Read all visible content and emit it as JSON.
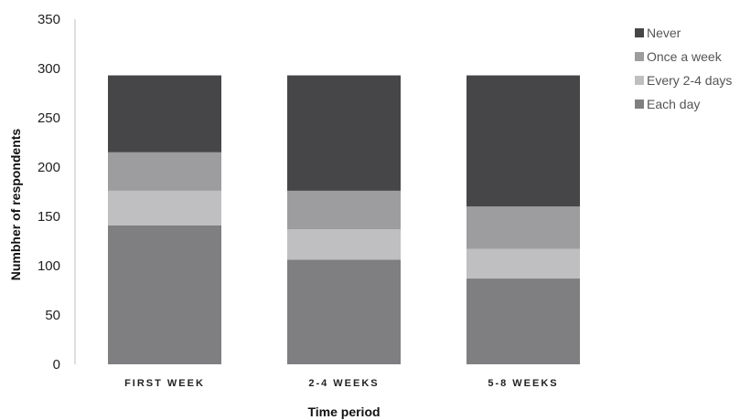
{
  "chart_data": {
    "type": "bar",
    "stacked": true,
    "categories": [
      "FIRST WEEK",
      "2-4 WEEKS",
      "5-8 WEEKS"
    ],
    "series": [
      {
        "name": "Each day",
        "values": [
          141,
          106,
          87
        ],
        "color": "#7f7f81"
      },
      {
        "name": "Every 2-4 days",
        "values": [
          35,
          31,
          30
        ],
        "color": "#bfbfc1"
      },
      {
        "name": "Once a week",
        "values": [
          39,
          39,
          43
        ],
        "color": "#9d9d9f"
      },
      {
        "name": "Never",
        "values": [
          78,
          117,
          133
        ],
        "color": "#464648"
      }
    ],
    "legend_order": [
      "Never",
      "Once a week",
      "Every 2-4 days",
      "Each day"
    ],
    "title": "",
    "xlabel": "Time period",
    "ylabel": "Numbher of respondents",
    "ylim": [
      0,
      350
    ],
    "yticks": [
      0,
      50,
      100,
      150,
      200,
      250,
      300,
      350
    ],
    "grid": false,
    "legend_position": "right"
  }
}
